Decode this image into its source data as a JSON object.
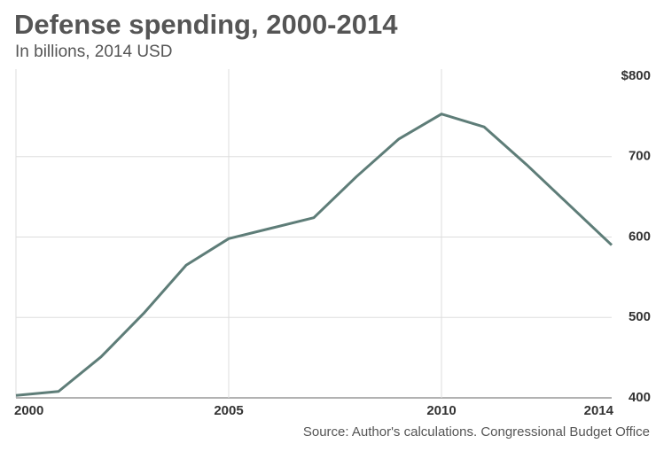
{
  "chart_data": {
    "type": "line",
    "title": "Defense spending, 2000-2014",
    "subtitle": "In billions, 2014 USD",
    "source": "Source: Author's calculations. Congressional Budget Office",
    "x": [
      2000,
      2001,
      2002,
      2003,
      2004,
      2005,
      2006,
      2007,
      2008,
      2009,
      2010,
      2011,
      2012,
      2013,
      2014
    ],
    "series": [
      {
        "name": "Defense spending",
        "color": "#5e7d78",
        "values": [
          403,
          408,
          451,
          505,
          565,
          598,
          611,
          624,
          675,
          722,
          753,
          737,
          690,
          640,
          590
        ]
      }
    ],
    "xlim": [
      2000,
      2014
    ],
    "xticks": [
      2000,
      2005,
      2010,
      2014
    ],
    "ylim": [
      400,
      800
    ],
    "yticks": [
      400,
      500,
      600,
      {
        "value": 800,
        "label": "$800"
      },
      700
    ],
    "grid": true
  }
}
